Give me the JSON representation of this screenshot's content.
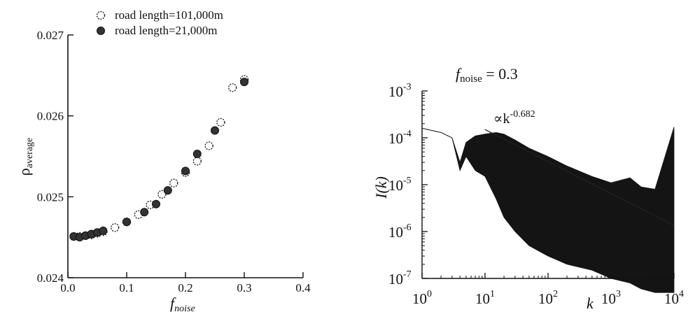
{
  "chart_data": [
    {
      "type": "scatter",
      "xlabel": "f",
      "xlabel_sub": "noise",
      "ylabel": "ρ",
      "ylabel_sub": "average",
      "xlim": [
        0.0,
        0.4
      ],
      "ylim": [
        0.024,
        0.027
      ],
      "xticks": [
        0.0,
        0.1,
        0.2,
        0.3,
        0.4
      ],
      "xtick_labels": [
        "0.0",
        "0.1",
        "0.2",
        "0.3",
        "0.4"
      ],
      "yticks": [
        0.024,
        0.025,
        0.026,
        0.027
      ],
      "ytick_labels": [
        "0.024",
        "0.025",
        "0.026",
        "0.027"
      ],
      "legend_placement": "top",
      "series": [
        {
          "name": "road length=101,000m",
          "marker": "open-dotted-circle",
          "x": [
            0.01,
            0.02,
            0.03,
            0.04,
            0.05,
            0.06,
            0.08,
            0.1,
            0.12,
            0.14,
            0.16,
            0.18,
            0.2,
            0.22,
            0.24,
            0.26,
            0.28,
            0.3
          ],
          "y": [
            0.02451,
            0.02451,
            0.02452,
            0.02453,
            0.02455,
            0.02457,
            0.02462,
            0.02469,
            0.02478,
            0.0249,
            0.02503,
            0.02517,
            0.0253,
            0.02544,
            0.02563,
            0.02592,
            0.02635,
            0.02645
          ]
        },
        {
          "name": "road length=21,000m",
          "marker": "filled-circle",
          "x": [
            0.01,
            0.02,
            0.03,
            0.04,
            0.05,
            0.06,
            0.1,
            0.13,
            0.15,
            0.17,
            0.2,
            0.22,
            0.25,
            0.3
          ],
          "y": [
            0.02451,
            0.0245,
            0.02452,
            0.02454,
            0.02456,
            0.02458,
            0.02469,
            0.02481,
            0.02491,
            0.02508,
            0.02532,
            0.02553,
            0.02582,
            0.02642
          ]
        }
      ]
    },
    {
      "type": "line",
      "title_text": "f",
      "title_sub": "noise",
      "title_value": " = 0.3",
      "xlabel": "k",
      "ylabel": "I(k)",
      "xscale": "log",
      "yscale": "log",
      "xlim": [
        1,
        10000
      ],
      "ylim": [
        1e-07,
        0.001
      ],
      "xtick_labels": [
        [
          "10",
          "0"
        ],
        [
          "10",
          "1"
        ],
        [
          "10",
          "2"
        ],
        [
          "10",
          "3"
        ],
        [
          "10",
          "4"
        ]
      ],
      "ytick_labels": [
        [
          "10",
          "-3"
        ],
        [
          "10",
          "-4"
        ],
        [
          "10",
          "-5"
        ],
        [
          "10",
          "-6"
        ],
        [
          "10",
          "-7"
        ]
      ],
      "fit_label": "∝k",
      "fit_exponent": "-0.682",
      "fit_line": {
        "k": [
          10,
          10000
        ],
        "I": [
          0.00015,
          1.35e-06
        ]
      },
      "spectrum_envelope": {
        "k": [
          1,
          2,
          3,
          4,
          5,
          7,
          10,
          15,
          20,
          30,
          50,
          100,
          200,
          500,
          1000,
          2000,
          3000,
          5000,
          10000
        ],
        "upper": [
          0.00016,
          0.00013,
          0.0001,
          3e-05,
          8e-05,
          0.00011,
          0.00012,
          0.00013,
          0.00012,
          9e-05,
          6e-05,
          4e-05,
          2.5e-05,
          1.5e-05,
          1.1e-05,
          1.4e-05,
          9e-06,
          8e-06,
          0.00017
        ],
        "lower": [
          0.00016,
          0.00013,
          0.0001,
          2e-05,
          4e-05,
          2e-05,
          1.5e-05,
          5e-06,
          2e-06,
          1e-06,
          5e-07,
          3e-07,
          2e-07,
          1.5e-07,
          1e-07,
          8e-08,
          6e-08,
          5e-08,
          5e-08
        ]
      }
    }
  ]
}
